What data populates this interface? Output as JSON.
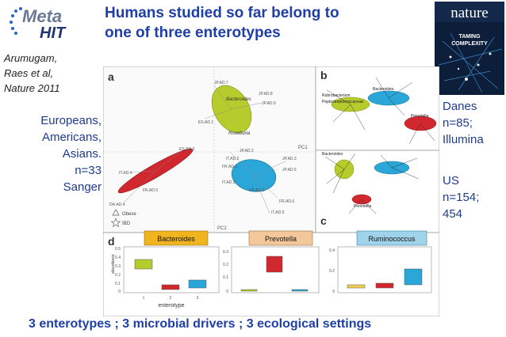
{
  "logo": {
    "text_top": "Meta",
    "text_bottom": "HIT"
  },
  "title": {
    "line1": "Humans studied so far belong to",
    "line2": "one of three enterotypes"
  },
  "citation": {
    "line1": "Arumugam,",
    "line2": "Raes et al,",
    "line3": "Nature 2011"
  },
  "left_cohort": {
    "line1": "Europeans,",
    "line2": "Americans,",
    "line3": "Asians.",
    "line4": "n=33",
    "line5": "Sanger"
  },
  "right_cohort_1": {
    "line1": "Danes",
    "line2": "n=85;",
    "line3": "Illumina"
  },
  "right_cohort_2": {
    "line1": "US",
    "line2": "n=154;",
    "line3": "454"
  },
  "nature_cover": {
    "masthead": "nature",
    "headline_line1": "TAMING",
    "headline_line2": "COMPLEXITY"
  },
  "figure": {
    "panel_labels": {
      "a": "a",
      "b": "b",
      "c": "c",
      "d": "d"
    },
    "axis_pc1": "PC1",
    "axis_pc2": "PC2",
    "legend_obese": "Obese",
    "legend_ibd": "IBD",
    "enterotype_tags": [
      "Bacteroides",
      "Prevotella",
      "Ruminococcus"
    ],
    "tag_colors": [
      "#f0b41e",
      "#f2c79a",
      "#9fd3ea"
    ],
    "cluster_colors": {
      "green": "#b6cc2c",
      "red": "#d0282e",
      "blue": "#2aa6d8"
    },
    "network_labels_b": [
      "Rubrobacterium",
      "Peptostreptococcaceae",
      "Bacteroides",
      "Prevotella"
    ],
    "network_labels_c": [
      "Bacteroides",
      "Prevotella"
    ],
    "cluster_labels_a": {
      "green1": "Bacteroides",
      "green2": "Roseburia"
    },
    "sample_labels_a": [
      "JP.AD.7",
      "JP.AD.8",
      "JP.AD.9",
      "ES.AD.1",
      "ES.AD.3",
      "IT.AD.4",
      "FR.AD.5",
      "JP.AD.2",
      "JP.AD.3",
      "IT.AD.2",
      "FR.AD.1",
      "JP.AD.6",
      "IT.AD.3",
      "FR.AD.2",
      "DA.AD.4",
      "FR.AD.6",
      "IT.AD.5"
    ],
    "boxplot": {
      "ylabel": "abundance",
      "xlabel": "enterotype",
      "x_ticks": [
        "1",
        "2",
        "3"
      ],
      "y_ticks_1": [
        "0.5",
        "0.4",
        "0.3",
        "0.2",
        "0.1",
        "0"
      ],
      "y_ticks_2": [
        "0.3",
        "0.2",
        "0.1",
        "0"
      ],
      "y_ticks_3": [
        "0.4",
        "0.2",
        "0"
      ]
    }
  },
  "bottom_caption": "3 enterotypes ; 3 microbial drivers ; 3 ecological settings"
}
